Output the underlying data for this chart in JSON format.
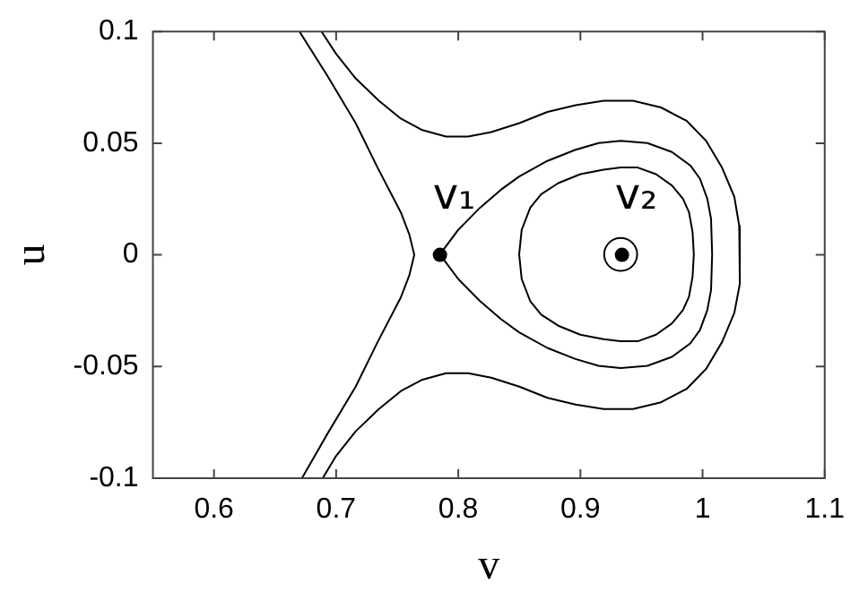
{
  "chart_data": {
    "type": "line",
    "xlabel": "v",
    "ylabel": "u",
    "xlim": [
      0.55,
      1.1
    ],
    "xticks": [
      0.6,
      0.7,
      0.8,
      0.9,
      1,
      1.1
    ],
    "ylim": [
      -0.1,
      0.1
    ],
    "yticks": [
      -0.1,
      -0.05,
      0,
      0.05,
      0.1
    ],
    "marker": "none",
    "line_style": "solid",
    "annotations": [
      {
        "text": "v₁",
        "x": 0.785,
        "y": 0
      },
      {
        "text": "v₂",
        "x": 0.934,
        "y": 0
      }
    ],
    "series": [
      {
        "type": "line",
        "color": "#000000",
        "x": [
          0.67,
          0.693,
          0.716,
          0.734,
          0.753,
          0.76,
          0.764,
          0.76,
          0.753,
          0.734,
          0.716,
          0.693,
          0.672
        ],
        "values": [
          0.1,
          0.08,
          0.059,
          0.039,
          0.019,
          0.009,
          0,
          -0.009,
          -0.019,
          -0.039,
          -0.059,
          -0.08,
          -0.1
        ]
      },
      {
        "type": "line",
        "color": "#000000",
        "x": [
          0.688,
          0.7,
          0.716,
          0.735,
          0.753,
          0.77,
          0.79,
          0.808,
          0.827,
          0.85,
          0.873,
          0.896,
          0.919,
          0.943,
          0.966,
          0.987,
          1.003,
          1.016,
          1.026,
          1.03,
          1.031,
          1.03,
          1.026,
          1.016,
          1.003,
          0.987,
          0.966,
          0.943,
          0.919,
          0.896,
          0.873,
          0.85,
          0.827,
          0.808,
          0.79,
          0.77,
          0.753,
          0.735,
          0.716,
          0.7,
          0.689
        ],
        "values": [
          0.1,
          0.09,
          0.079,
          0.069,
          0.061,
          0.056,
          0.053,
          0.053,
          0.055,
          0.059,
          0.064,
          0.067,
          0.069,
          0.069,
          0.066,
          0.06,
          0.051,
          0.039,
          0.026,
          0.013,
          0,
          -0.013,
          -0.026,
          -0.039,
          -0.051,
          -0.06,
          -0.066,
          -0.069,
          -0.069,
          -0.067,
          -0.064,
          -0.059,
          -0.055,
          -0.053,
          -0.053,
          -0.056,
          -0.061,
          -0.069,
          -0.079,
          -0.09,
          -0.1
        ]
      },
      {
        "type": "scatter",
        "marker": "circle",
        "color": "#000000",
        "x": [
          0.785,
          0.934
        ],
        "values": [
          0,
          0
        ]
      }
    ]
  }
}
